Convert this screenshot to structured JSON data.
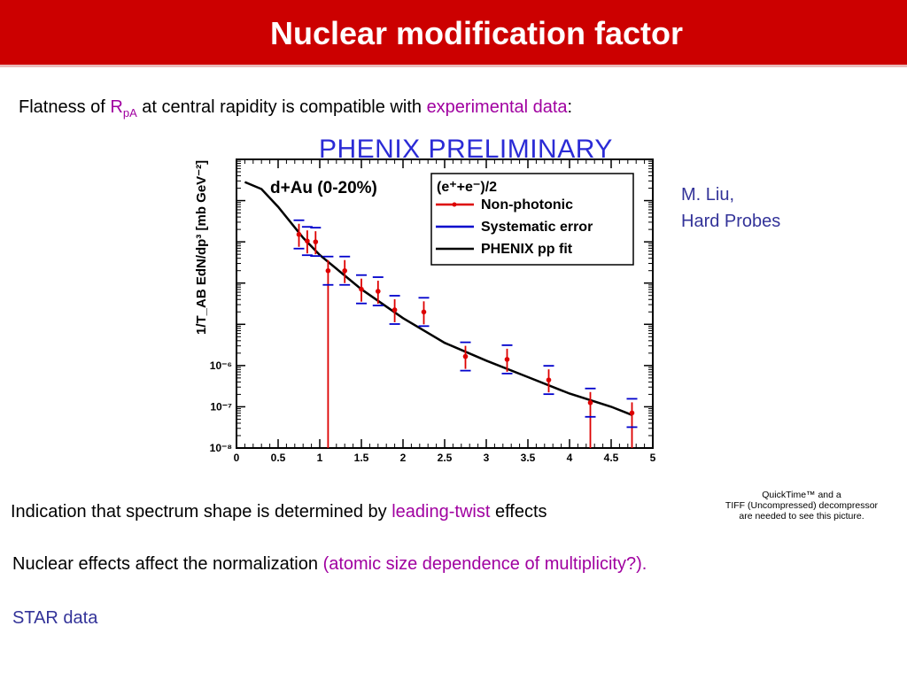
{
  "slide": {
    "title": "Nuclear modification factor",
    "intro": {
      "pre": "Flatness of ",
      "r": "R",
      "r_sub": "pA",
      "mid": " at central rapidity is compatible with ",
      "link": "experimental data",
      "post": ":"
    },
    "credit": {
      "line1": "M. Liu,",
      "line2": "Hard Probes"
    },
    "indication": {
      "pre": "Indication that spectrum shape is determined by ",
      "highlight": "leading-twist",
      "post": " effects"
    },
    "quicktime": {
      "line1": "QuickTime™ and a",
      "line2": "TIFF (Uncompressed) decompressor",
      "line3": "are needed to see this picture."
    },
    "nuclear": {
      "pre": "Nuclear effects affect the normalization ",
      "highlight": "(atomic size dependence of multiplicity?)."
    },
    "star": "STAR data",
    "colors": {
      "title_bg": "#cc0000",
      "highlight": "#a000a0",
      "credit": "#333399",
      "data": "#dd0000",
      "syst": "#0000cc"
    }
  },
  "chart_data": {
    "type": "scatter",
    "title": "PHENIX PRELIMINARY",
    "panel_label": "d+Au (0-20%)",
    "legend_header": "(e⁺+e⁻)/2",
    "legend_position": "top-right",
    "ylabel": "1/T_AB EdN/dp³ [mb GeV⁻²]",
    "xlim": [
      0,
      5
    ],
    "ylim_log10": [
      -8,
      -1
    ],
    "log_y": true,
    "x_ticks": [
      "0",
      "0.5",
      "1",
      "1.5",
      "2",
      "2.5",
      "3",
      "3.5",
      "4",
      "4.5",
      "5"
    ],
    "y_ticks": [
      "10⁻⁶",
      "10⁻⁷",
      "10⁻⁸"
    ],
    "series": [
      {
        "name": "Non-photonic",
        "color": "#dd0000",
        "x": [
          0.75,
          0.85,
          0.95,
          1.1,
          1.3,
          1.5,
          1.7,
          1.9,
          2.25,
          2.75,
          3.25,
          3.75,
          4.25,
          4.75
        ],
        "y_log10": [
          -2.82,
          -2.98,
          -3.0,
          -3.7,
          -3.7,
          -4.15,
          -4.2,
          -4.65,
          -4.7,
          -5.78,
          -5.85,
          -6.35,
          -6.9,
          -7.15
        ]
      },
      {
        "name": "Systematic error",
        "color": "#0000cc"
      },
      {
        "name": "PHENIX pp fit",
        "color": "#000000",
        "x": [
          0.1,
          0.3,
          0.5,
          0.8,
          1.0,
          1.5,
          2.0,
          2.5,
          3.0,
          3.5,
          4.0,
          4.5,
          4.75
        ],
        "y_log10": [
          -1.55,
          -1.72,
          -2.15,
          -2.9,
          -3.32,
          -4.15,
          -4.85,
          -5.45,
          -5.88,
          -6.28,
          -6.68,
          -7.0,
          -7.2
        ]
      }
    ]
  }
}
